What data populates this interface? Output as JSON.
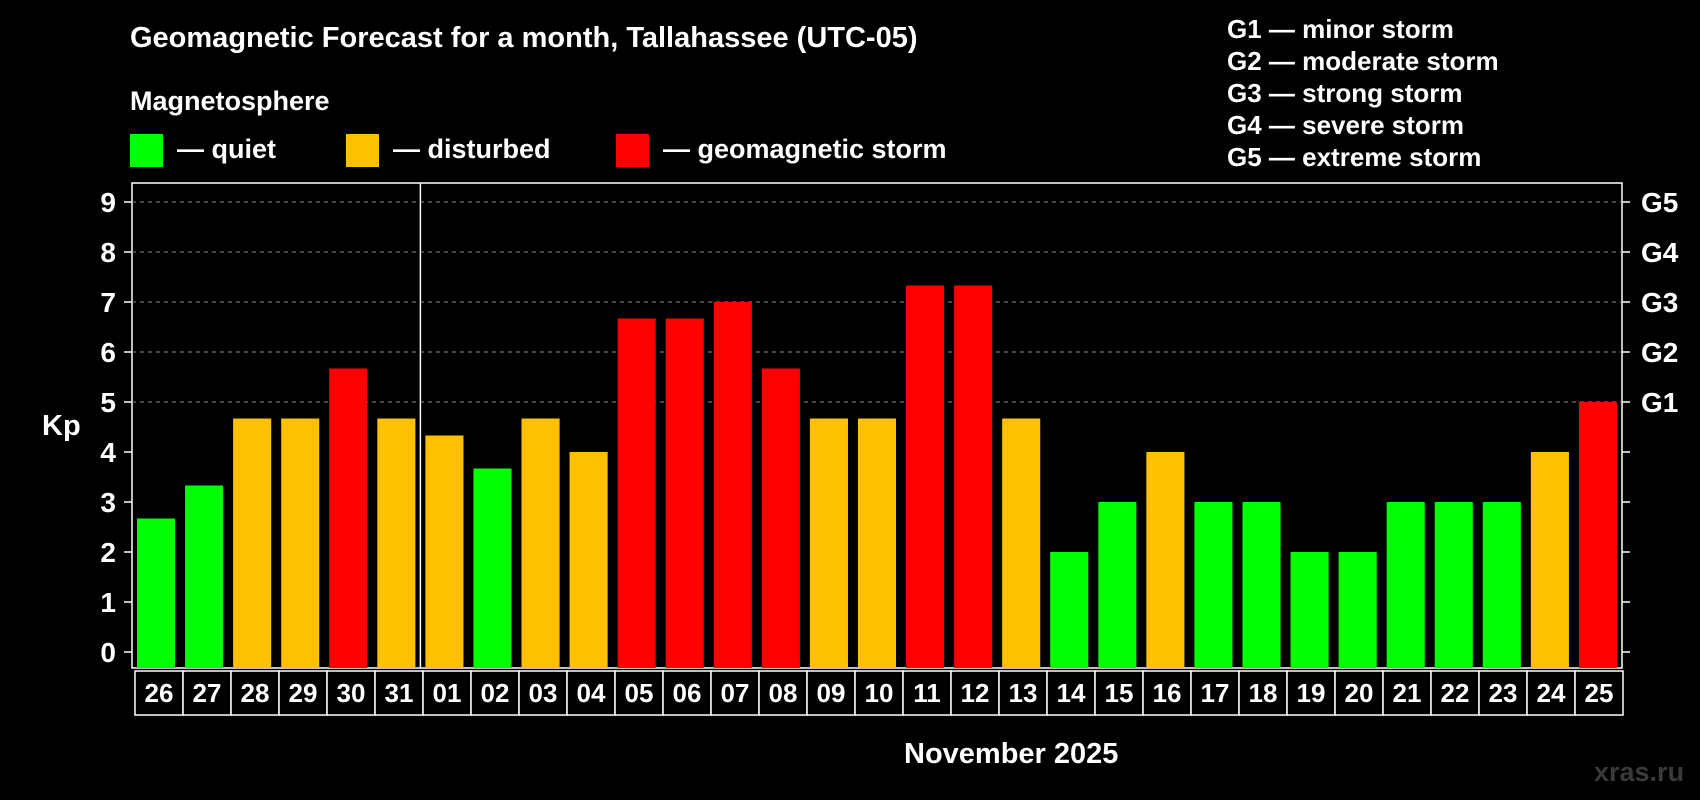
{
  "title": "Geomagnetic Forecast for a month, Tallahassee (UTC-05)",
  "legend": {
    "title": "Magnetosphere",
    "items": [
      {
        "label": "— quiet",
        "color": "#00ff00"
      },
      {
        "label": "— disturbed",
        "color": "#ffc000"
      },
      {
        "label": "— geomagnetic storm",
        "color": "#ff0000"
      }
    ]
  },
  "g_legend": [
    "G1 — minor storm",
    "G2 — moderate storm",
    "G3 — strong storm",
    "G4 — severe storm",
    "G5 — extreme storm"
  ],
  "month_label": "November 2025",
  "watermark": "xras.ru",
  "chart_data": {
    "type": "bar",
    "ylabel": "Kp",
    "ylim": [
      0,
      9
    ],
    "yticks": [
      "0",
      "1",
      "2",
      "3",
      "4",
      "5",
      "6",
      "7",
      "8",
      "9"
    ],
    "right_ticks": [
      {
        "label": "G1",
        "value": 5
      },
      {
        "label": "G2",
        "value": 6
      },
      {
        "label": "G3",
        "value": 7
      },
      {
        "label": "G4",
        "value": 8
      },
      {
        "label": "G5",
        "value": 9
      }
    ],
    "grid": "dashed horizontal at 5-9",
    "colors": {
      "quiet": "#00ff00",
      "disturbed": "#ffc000",
      "storm": "#ff0000"
    },
    "categories": [
      "26",
      "27",
      "28",
      "29",
      "30",
      "31",
      "01",
      "02",
      "03",
      "04",
      "05",
      "06",
      "07",
      "08",
      "09",
      "10",
      "11",
      "12",
      "13",
      "14",
      "15",
      "16",
      "17",
      "18",
      "19",
      "20",
      "21",
      "22",
      "23",
      "24",
      "25"
    ],
    "values": [
      2.67,
      3.33,
      4.67,
      4.67,
      5.67,
      4.67,
      4.33,
      3.67,
      4.67,
      4.0,
      6.67,
      6.67,
      7.0,
      5.67,
      4.67,
      4.67,
      7.33,
      7.33,
      4.67,
      2.0,
      3.0,
      4.0,
      3.0,
      3.0,
      2.0,
      2.0,
      3.0,
      3.0,
      3.0,
      4.0,
      5.0
    ],
    "status": [
      "quiet",
      "quiet",
      "disturbed",
      "disturbed",
      "storm",
      "disturbed",
      "disturbed",
      "quiet",
      "disturbed",
      "disturbed",
      "storm",
      "storm",
      "storm",
      "storm",
      "disturbed",
      "disturbed",
      "storm",
      "storm",
      "disturbed",
      "quiet",
      "quiet",
      "disturbed",
      "quiet",
      "quiet",
      "quiet",
      "quiet",
      "quiet",
      "quiet",
      "quiet",
      "disturbed",
      "storm"
    ]
  }
}
